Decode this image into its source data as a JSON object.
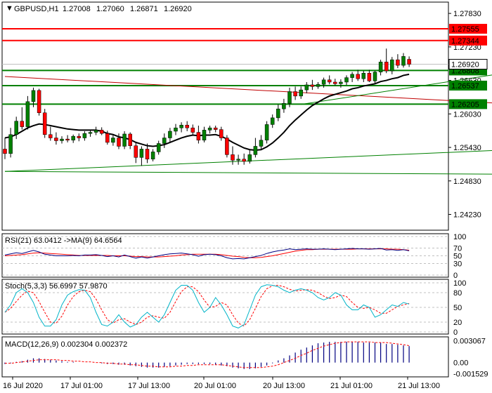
{
  "chart_data": {
    "type": "candlestick",
    "symbol": "GBPUSD,H1",
    "ohlc_header": [
      "1.27008",
      "1.27060",
      "1.26871",
      "1.26920"
    ],
    "current_price": "1.26920",
    "x_labels": [
      "16 Jul 2020",
      "17 Jul 01:00",
      "17 Jul 13:00",
      "20 Jul 01:00",
      "20 Jul 13:00",
      "21 Jul 01:00",
      "21 Jul 13:00"
    ],
    "price_axis": {
      "ylim": [
        1.2396,
        1.2802
      ],
      "ticks": [
        "1.27830",
        "1.27230",
        "1.26630",
        "1.26030",
        "1.25430",
        "1.24830",
        "1.24230"
      ]
    },
    "levels": {
      "resistance": [
        {
          "value": 1.27555,
          "label": "1.27555",
          "color": "#ff0000"
        },
        {
          "value": 1.27344,
          "label": "1.27344",
          "color": "#ff0000"
        }
      ],
      "support": [
        {
          "value": 1.26808,
          "label": "1.26808",
          "color": "#008000"
        },
        {
          "value": 1.26537,
          "label": "1.26537",
          "color": "#008000"
        },
        {
          "value": 1.26205,
          "label": "1.26205",
          "color": "#008000"
        }
      ]
    },
    "candles": [
      {
        "o": 1.254,
        "h": 1.256,
        "l": 1.2522,
        "c": 1.2532
      },
      {
        "o": 1.2532,
        "h": 1.2578,
        "l": 1.2525,
        "c": 1.2566
      },
      {
        "o": 1.2566,
        "h": 1.2598,
        "l": 1.2558,
        "c": 1.259
      },
      {
        "o": 1.259,
        "h": 1.2615,
        "l": 1.2575,
        "c": 1.258
      },
      {
        "o": 1.258,
        "h": 1.2635,
        "l": 1.2575,
        "c": 1.2625
      },
      {
        "o": 1.2625,
        "h": 1.265,
        "l": 1.2615,
        "c": 1.2645
      },
      {
        "o": 1.2645,
        "h": 1.2648,
        "l": 1.26,
        "c": 1.2605
      },
      {
        "o": 1.2605,
        "h": 1.2612,
        "l": 1.256,
        "c": 1.2566
      },
      {
        "o": 1.2566,
        "h": 1.258,
        "l": 1.2555,
        "c": 1.256
      },
      {
        "o": 1.256,
        "h": 1.257,
        "l": 1.2548,
        "c": 1.2555
      },
      {
        "o": 1.2555,
        "h": 1.2563,
        "l": 1.255,
        "c": 1.2558
      },
      {
        "o": 1.2558,
        "h": 1.2565,
        "l": 1.2552,
        "c": 1.2556
      },
      {
        "o": 1.2556,
        "h": 1.2566,
        "l": 1.2551,
        "c": 1.2563
      },
      {
        "o": 1.2563,
        "h": 1.2568,
        "l": 1.2554,
        "c": 1.256
      },
      {
        "o": 1.256,
        "h": 1.2572,
        "l": 1.2555,
        "c": 1.2568
      },
      {
        "o": 1.2568,
        "h": 1.2575,
        "l": 1.2562,
        "c": 1.257
      },
      {
        "o": 1.257,
        "h": 1.258,
        "l": 1.2565,
        "c": 1.2574
      },
      {
        "o": 1.2574,
        "h": 1.2579,
        "l": 1.2565,
        "c": 1.2568
      },
      {
        "o": 1.2568,
        "h": 1.2573,
        "l": 1.2548,
        "c": 1.2552
      },
      {
        "o": 1.2552,
        "h": 1.2566,
        "l": 1.2546,
        "c": 1.256
      },
      {
        "o": 1.256,
        "h": 1.2568,
        "l": 1.254,
        "c": 1.2545
      },
      {
        "o": 1.2545,
        "h": 1.2572,
        "l": 1.254,
        "c": 1.2567
      },
      {
        "o": 1.2567,
        "h": 1.257,
        "l": 1.254,
        "c": 1.2546
      },
      {
        "o": 1.2546,
        "h": 1.2552,
        "l": 1.2515,
        "c": 1.2525
      },
      {
        "o": 1.2525,
        "h": 1.2545,
        "l": 1.251,
        "c": 1.254
      },
      {
        "o": 1.254,
        "h": 1.255,
        "l": 1.2515,
        "c": 1.2522
      },
      {
        "o": 1.2522,
        "h": 1.254,
        "l": 1.2518,
        "c": 1.2535
      },
      {
        "o": 1.2535,
        "h": 1.2555,
        "l": 1.253,
        "c": 1.255
      },
      {
        "o": 1.255,
        "h": 1.2568,
        "l": 1.2542,
        "c": 1.256
      },
      {
        "o": 1.256,
        "h": 1.2578,
        "l": 1.2552,
        "c": 1.2572
      },
      {
        "o": 1.2572,
        "h": 1.2585,
        "l": 1.2565,
        "c": 1.2578
      },
      {
        "o": 1.2578,
        "h": 1.2588,
        "l": 1.257,
        "c": 1.2583
      },
      {
        "o": 1.2583,
        "h": 1.259,
        "l": 1.2572,
        "c": 1.2578
      },
      {
        "o": 1.2578,
        "h": 1.2584,
        "l": 1.2565,
        "c": 1.257
      },
      {
        "o": 1.257,
        "h": 1.2582,
        "l": 1.255,
        "c": 1.2556
      },
      {
        "o": 1.2556,
        "h": 1.258,
        "l": 1.2552,
        "c": 1.2574
      },
      {
        "o": 1.2574,
        "h": 1.2582,
        "l": 1.2568,
        "c": 1.2578
      },
      {
        "o": 1.2578,
        "h": 1.2582,
        "l": 1.257,
        "c": 1.2575
      },
      {
        "o": 1.2575,
        "h": 1.258,
        "l": 1.2555,
        "c": 1.256
      },
      {
        "o": 1.256,
        "h": 1.2565,
        "l": 1.2525,
        "c": 1.253
      },
      {
        "o": 1.253,
        "h": 1.2545,
        "l": 1.2512,
        "c": 1.252
      },
      {
        "o": 1.252,
        "h": 1.253,
        "l": 1.2512,
        "c": 1.2522
      },
      {
        "o": 1.2522,
        "h": 1.2532,
        "l": 1.2512,
        "c": 1.2518
      },
      {
        "o": 1.2518,
        "h": 1.254,
        "l": 1.2514,
        "c": 1.253
      },
      {
        "o": 1.253,
        "h": 1.256,
        "l": 1.2525,
        "c": 1.2545
      },
      {
        "o": 1.2545,
        "h": 1.2565,
        "l": 1.254,
        "c": 1.2556
      },
      {
        "o": 1.2556,
        "h": 1.259,
        "l": 1.255,
        "c": 1.2584
      },
      {
        "o": 1.2584,
        "h": 1.2602,
        "l": 1.2578,
        "c": 1.2596
      },
      {
        "o": 1.2596,
        "h": 1.262,
        "l": 1.259,
        "c": 1.2612
      },
      {
        "o": 1.2612,
        "h": 1.263,
        "l": 1.2605,
        "c": 1.2622
      },
      {
        "o": 1.2622,
        "h": 1.265,
        "l": 1.2615,
        "c": 1.2643
      },
      {
        "o": 1.2643,
        "h": 1.2652,
        "l": 1.2628,
        "c": 1.2635
      },
      {
        "o": 1.2635,
        "h": 1.2652,
        "l": 1.263,
        "c": 1.2646
      },
      {
        "o": 1.2646,
        "h": 1.266,
        "l": 1.264,
        "c": 1.2655
      },
      {
        "o": 1.2655,
        "h": 1.2664,
        "l": 1.2646,
        "c": 1.2652
      },
      {
        "o": 1.2652,
        "h": 1.266,
        "l": 1.2648,
        "c": 1.2656
      },
      {
        "o": 1.2656,
        "h": 1.2668,
        "l": 1.265,
        "c": 1.2664
      },
      {
        "o": 1.2664,
        "h": 1.2672,
        "l": 1.2656,
        "c": 1.266
      },
      {
        "o": 1.266,
        "h": 1.2666,
        "l": 1.2654,
        "c": 1.2657
      },
      {
        "o": 1.2657,
        "h": 1.2665,
        "l": 1.265,
        "c": 1.266
      },
      {
        "o": 1.266,
        "h": 1.2672,
        "l": 1.2655,
        "c": 1.2668
      },
      {
        "o": 1.2668,
        "h": 1.2678,
        "l": 1.266,
        "c": 1.2674
      },
      {
        "o": 1.2674,
        "h": 1.2682,
        "l": 1.2662,
        "c": 1.2666
      },
      {
        "o": 1.2666,
        "h": 1.268,
        "l": 1.266,
        "c": 1.2676
      },
      {
        "o": 1.2676,
        "h": 1.2682,
        "l": 1.266,
        "c": 1.2662
      },
      {
        "o": 1.2662,
        "h": 1.268,
        "l": 1.2656,
        "c": 1.2678
      },
      {
        "o": 1.2678,
        "h": 1.27,
        "l": 1.2672,
        "c": 1.2696
      },
      {
        "o": 1.2696,
        "h": 1.272,
        "l": 1.2676,
        "c": 1.268
      },
      {
        "o": 1.268,
        "h": 1.2705,
        "l": 1.2674,
        "c": 1.27
      },
      {
        "o": 1.27,
        "h": 1.271,
        "l": 1.2685,
        "c": 1.269
      },
      {
        "o": 1.269,
        "h": 1.2712,
        "l": 1.2686,
        "c": 1.2706
      },
      {
        "o": 1.27008,
        "h": 1.2706,
        "l": 1.26871,
        "c": 1.2692
      }
    ],
    "moving_average": [
      1.256,
      1.2562,
      1.2566,
      1.2572,
      1.2578,
      1.2582,
      1.2585,
      1.2584,
      1.2582,
      1.258,
      1.2578,
      1.2576,
      1.2575,
      1.2574,
      1.2574,
      1.2574,
      1.2574,
      1.2572,
      1.2568,
      1.2566,
      1.2562,
      1.256,
      1.2557,
      1.2552,
      1.2549,
      1.2546,
      1.2545,
      1.2546,
      1.2548,
      1.2552,
      1.2556,
      1.256,
      1.2563,
      1.2565,
      1.2564,
      1.2565,
      1.2565,
      1.2566,
      1.2563,
      1.2558,
      1.2552,
      1.2547,
      1.2542,
      1.2539,
      1.2538,
      1.2539,
      1.2544,
      1.2551,
      1.256,
      1.257,
      1.2582,
      1.2592,
      1.2601,
      1.261,
      1.2618,
      1.2624,
      1.263,
      1.2635,
      1.2638,
      1.2641,
      1.2644,
      1.2648,
      1.265,
      1.2653,
      1.2655,
      1.2657,
      1.2661,
      1.2663,
      1.2666,
      1.2668,
      1.2672,
      1.2674
    ],
    "trendlines": [
      {
        "color": "#008000",
        "from": [
          0,
          1.25
        ],
        "to": [
          87,
          1.2495
        ]
      },
      {
        "color": "#008000",
        "from": [
          0,
          1.25
        ],
        "to": [
          87,
          1.2538
        ]
      },
      {
        "color": "#c00000",
        "from": [
          0,
          1.267
        ],
        "to": [
          87,
          1.2622
        ]
      },
      {
        "color": "#008000",
        "from": [
          52,
          1.262
        ],
        "to": [
          87,
          1.2675
        ]
      }
    ],
    "rsi": {
      "label": "RSI(21) 63.0412 ->MA(9) 64.6564",
      "ticks": [
        "100",
        "70",
        "50",
        "30",
        "0"
      ],
      "ylim": [
        0,
        100
      ],
      "values": [
        52,
        55,
        58,
        56,
        60,
        64,
        60,
        54,
        52,
        50,
        50,
        50,
        51,
        50,
        52,
        52,
        53,
        51,
        48,
        50,
        47,
        52,
        48,
        44,
        47,
        44,
        47,
        50,
        53,
        55,
        56,
        57,
        55,
        53,
        49,
        53,
        54,
        53,
        50,
        45,
        42,
        43,
        42,
        45,
        48,
        51,
        56,
        60,
        63,
        65,
        68,
        66,
        67,
        68,
        67,
        67,
        68,
        67,
        66,
        67,
        68,
        69,
        68,
        68,
        67,
        68,
        69,
        65,
        66,
        64,
        66,
        63
      ],
      "ma": [
        50,
        51,
        52,
        53,
        55,
        57,
        58,
        57,
        56,
        55,
        54,
        53,
        52,
        51,
        51,
        51,
        51,
        51,
        51,
        50,
        50,
        50,
        49,
        48,
        48,
        47,
        47,
        47,
        48,
        49,
        50,
        52,
        53,
        54,
        54,
        54,
        54,
        54,
        53,
        51,
        49,
        48,
        46,
        45,
        45,
        46,
        48,
        50,
        53,
        56,
        59,
        62,
        64,
        66,
        66,
        67,
        67,
        67,
        67,
        67,
        67,
        67,
        68,
        68,
        68,
        68,
        68,
        68,
        67,
        67,
        66,
        64.6564
      ]
    },
    "stochastic": {
      "label": "Stoch(5,3,3) 56.6997 57.9870",
      "ticks": [
        "100",
        "80",
        "50",
        "20",
        "0"
      ],
      "ylim": [
        0,
        100
      ],
      "main": [
        40,
        55,
        80,
        88,
        80,
        60,
        30,
        12,
        12,
        25,
        55,
        75,
        82,
        86,
        85,
        70,
        40,
        15,
        12,
        20,
        35,
        20,
        10,
        15,
        30,
        40,
        30,
        20,
        35,
        60,
        85,
        95,
        95,
        85,
        60,
        40,
        50,
        70,
        55,
        35,
        12,
        8,
        15,
        45,
        75,
        92,
        96,
        95,
        92,
        85,
        80,
        85,
        88,
        85,
        80,
        70,
        65,
        70,
        80,
        75,
        55,
        45,
        45,
        55,
        50,
        30,
        35,
        45,
        55,
        52,
        60,
        56.6997
      ],
      "signal": [
        40,
        48,
        62,
        75,
        83,
        80,
        62,
        40,
        20,
        18,
        32,
        55,
        72,
        82,
        85,
        82,
        67,
        45,
        25,
        18,
        25,
        27,
        20,
        15,
        20,
        30,
        33,
        30,
        28,
        40,
        62,
        82,
        92,
        92,
        82,
        65,
        50,
        52,
        60,
        55,
        35,
        18,
        12,
        25,
        48,
        72,
        88,
        94,
        95,
        92,
        87,
        83,
        85,
        86,
        85,
        80,
        73,
        68,
        70,
        75,
        72,
        60,
        50,
        48,
        50,
        45,
        38,
        38,
        45,
        52,
        55,
        57.987
      ]
    },
    "macd": {
      "label": "MACD(12,26,9) 0.002304 0.002372",
      "ticks": [
        "0.003067",
        "0.00",
        "-0.001529"
      ],
      "ylim": [
        -0.0017,
        0.0033
      ],
      "histogram": [
        -0.0002,
        -0.0001,
        0.0001,
        0.0002,
        0.0004,
        0.0006,
        0.0006,
        0.0005,
        0.0004,
        0.0003,
        0.0002,
        0.0001,
        0.0001,
        0.0,
        0.0,
        0.0,
        0.0,
        -0.0001,
        -0.0002,
        -0.0002,
        -0.0003,
        -0.0003,
        -0.0004,
        -0.0005,
        -0.0006,
        -0.0007,
        -0.0007,
        -0.0007,
        -0.0006,
        -0.0005,
        -0.0004,
        -0.0003,
        -0.0002,
        -0.0002,
        -0.0002,
        -0.0002,
        -0.0002,
        -0.0003,
        -0.0004,
        -0.0005,
        -0.0007,
        -0.0008,
        -0.0009,
        -0.0009,
        -0.0008,
        -0.0006,
        -0.0004,
        -0.0001,
        0.0003,
        0.0006,
        0.001,
        0.0014,
        0.0018,
        0.0021,
        0.0024,
        0.0027,
        0.0028,
        0.0029,
        0.0029,
        0.0029,
        0.0029,
        0.0029,
        0.0029,
        0.0028,
        0.0028,
        0.0028,
        0.0028,
        0.0026,
        0.0026,
        0.0025,
        0.0024,
        0.002304
      ],
      "signal": [
        -0.0001,
        -0.0001,
        0.0,
        0.0001,
        0.0002,
        0.0003,
        0.0004,
        0.0004,
        0.0004,
        0.0004,
        0.0003,
        0.0003,
        0.0002,
        0.0002,
        0.0001,
        0.0001,
        0.0,
        0.0,
        -0.0001,
        -0.0001,
        -0.0002,
        -0.0002,
        -0.0003,
        -0.0003,
        -0.0004,
        -0.0005,
        -0.0005,
        -0.0006,
        -0.0006,
        -0.0006,
        -0.0005,
        -0.0005,
        -0.0004,
        -0.0004,
        -0.0003,
        -0.0003,
        -0.0003,
        -0.0003,
        -0.0003,
        -0.0004,
        -0.0005,
        -0.0006,
        -0.0007,
        -0.0007,
        -0.0007,
        -0.0007,
        -0.0006,
        -0.0005,
        -0.0003,
        0.0,
        0.0003,
        0.0006,
        0.001,
        0.0013,
        0.0017,
        0.002,
        0.0023,
        0.0025,
        0.0027,
        0.0028,
        0.0029,
        0.0029,
        0.0029,
        0.0029,
        0.0029,
        0.0028,
        0.0028,
        0.0028,
        0.0027,
        0.0026,
        0.0025,
        0.002372
      ]
    },
    "colors": {
      "bull_candle": "#008000",
      "bear_candle": "#ff0000",
      "wick": "#000000",
      "moving_average": "#000000",
      "rsi_line": "#000080",
      "rsi_ma": "#ff0000",
      "stoch_main": "#00b4c8",
      "stoch_signal": "#ff0000",
      "macd_hist": "#000080",
      "macd_signal": "#ff0000",
      "current_price_bg": "#ffffff",
      "level_label_text": "#ffffff"
    }
  }
}
